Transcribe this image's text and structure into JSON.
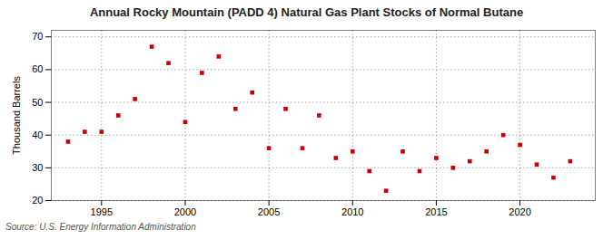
{
  "chart_data": {
    "type": "scatter",
    "title": "Annual Rocky Mountain (PADD 4) Natural Gas Plant Stocks of Normal Butane",
    "ylabel": "Thousand Barrels",
    "annotation": "Source: U.S. Energy Information Administration",
    "x": [
      1993,
      1994,
      1995,
      1996,
      1997,
      1998,
      1999,
      2000,
      2001,
      2002,
      2003,
      2004,
      2005,
      2006,
      2007,
      2008,
      2009,
      2010,
      2011,
      2012,
      2013,
      2014,
      2015,
      2016,
      2017,
      2018,
      2019,
      2020,
      2021,
      2022,
      2023
    ],
    "values": [
      38,
      41,
      41,
      46,
      51,
      67,
      62,
      44,
      59,
      64,
      48,
      53,
      36,
      48,
      36,
      46,
      33,
      35,
      29,
      23,
      35,
      29,
      33,
      30,
      32,
      35,
      40,
      37,
      31,
      27,
      32
    ],
    "color": "#cc0000",
    "marker": "square",
    "xlim": [
      1992,
      2024.5
    ],
    "ylim": [
      20,
      72
    ],
    "xticks": [
      1995,
      2000,
      2005,
      2010,
      2015,
      2020
    ],
    "yticks": [
      20,
      30,
      40,
      50,
      60,
      70
    ],
    "grid": true
  }
}
